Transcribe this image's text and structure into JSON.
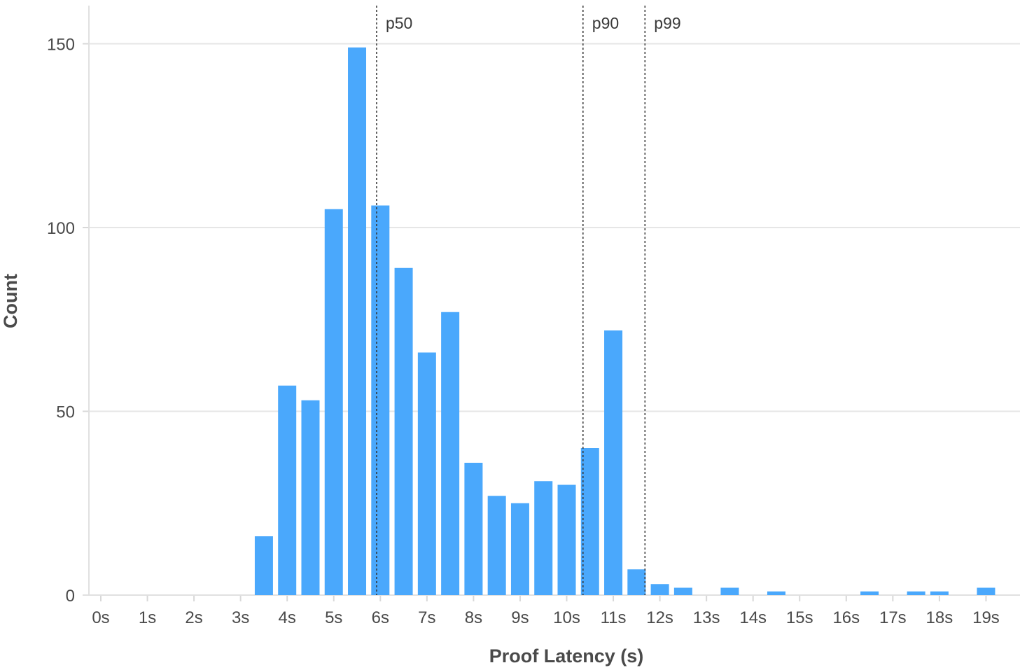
{
  "chart_data": {
    "type": "bar",
    "title": "",
    "xlabel": "Proof Latency (s)",
    "ylabel": "Count",
    "bin_width": 0.5,
    "xlim": [
      -0.25,
      19.25
    ],
    "ylim": [
      0,
      160
    ],
    "grid": "horizontal",
    "bar_color": "#4aa8fc",
    "x_ticks": [
      0,
      1,
      2,
      3,
      4,
      5,
      6,
      7,
      8,
      9,
      10,
      11,
      12,
      13,
      14,
      15,
      16,
      17,
      18,
      19
    ],
    "x_tick_labels": [
      "0s",
      "1s",
      "2s",
      "3s",
      "4s",
      "5s",
      "6s",
      "7s",
      "8s",
      "9s",
      "10s",
      "11s",
      "12s",
      "13s",
      "14s",
      "15s",
      "16s",
      "17s",
      "18s",
      "19s"
    ],
    "y_ticks": [
      0,
      50,
      100,
      150
    ],
    "y_tick_labels": [
      "0",
      "50",
      "100",
      "150"
    ],
    "bins": [
      {
        "x": 3.5,
        "count": 16
      },
      {
        "x": 4.0,
        "count": 57
      },
      {
        "x": 4.5,
        "count": 53
      },
      {
        "x": 5.0,
        "count": 105
      },
      {
        "x": 5.5,
        "count": 149
      },
      {
        "x": 6.0,
        "count": 106
      },
      {
        "x": 6.5,
        "count": 89
      },
      {
        "x": 7.0,
        "count": 66
      },
      {
        "x": 7.5,
        "count": 77
      },
      {
        "x": 8.0,
        "count": 36
      },
      {
        "x": 8.5,
        "count": 27
      },
      {
        "x": 9.0,
        "count": 25
      },
      {
        "x": 9.5,
        "count": 31
      },
      {
        "x": 10.0,
        "count": 30
      },
      {
        "x": 10.5,
        "count": 40
      },
      {
        "x": 11.0,
        "count": 72
      },
      {
        "x": 11.5,
        "count": 7
      },
      {
        "x": 12.0,
        "count": 3
      },
      {
        "x": 12.5,
        "count": 2
      },
      {
        "x": 13.5,
        "count": 2
      },
      {
        "x": 14.5,
        "count": 1
      },
      {
        "x": 16.5,
        "count": 1
      },
      {
        "x": 17.5,
        "count": 1
      },
      {
        "x": 18.0,
        "count": 1
      },
      {
        "x": 19.0,
        "count": 2
      }
    ],
    "percentiles": [
      {
        "label": "p50",
        "x": 5.92
      },
      {
        "label": "p90",
        "x": 10.35
      },
      {
        "label": "p99",
        "x": 11.68
      }
    ]
  }
}
